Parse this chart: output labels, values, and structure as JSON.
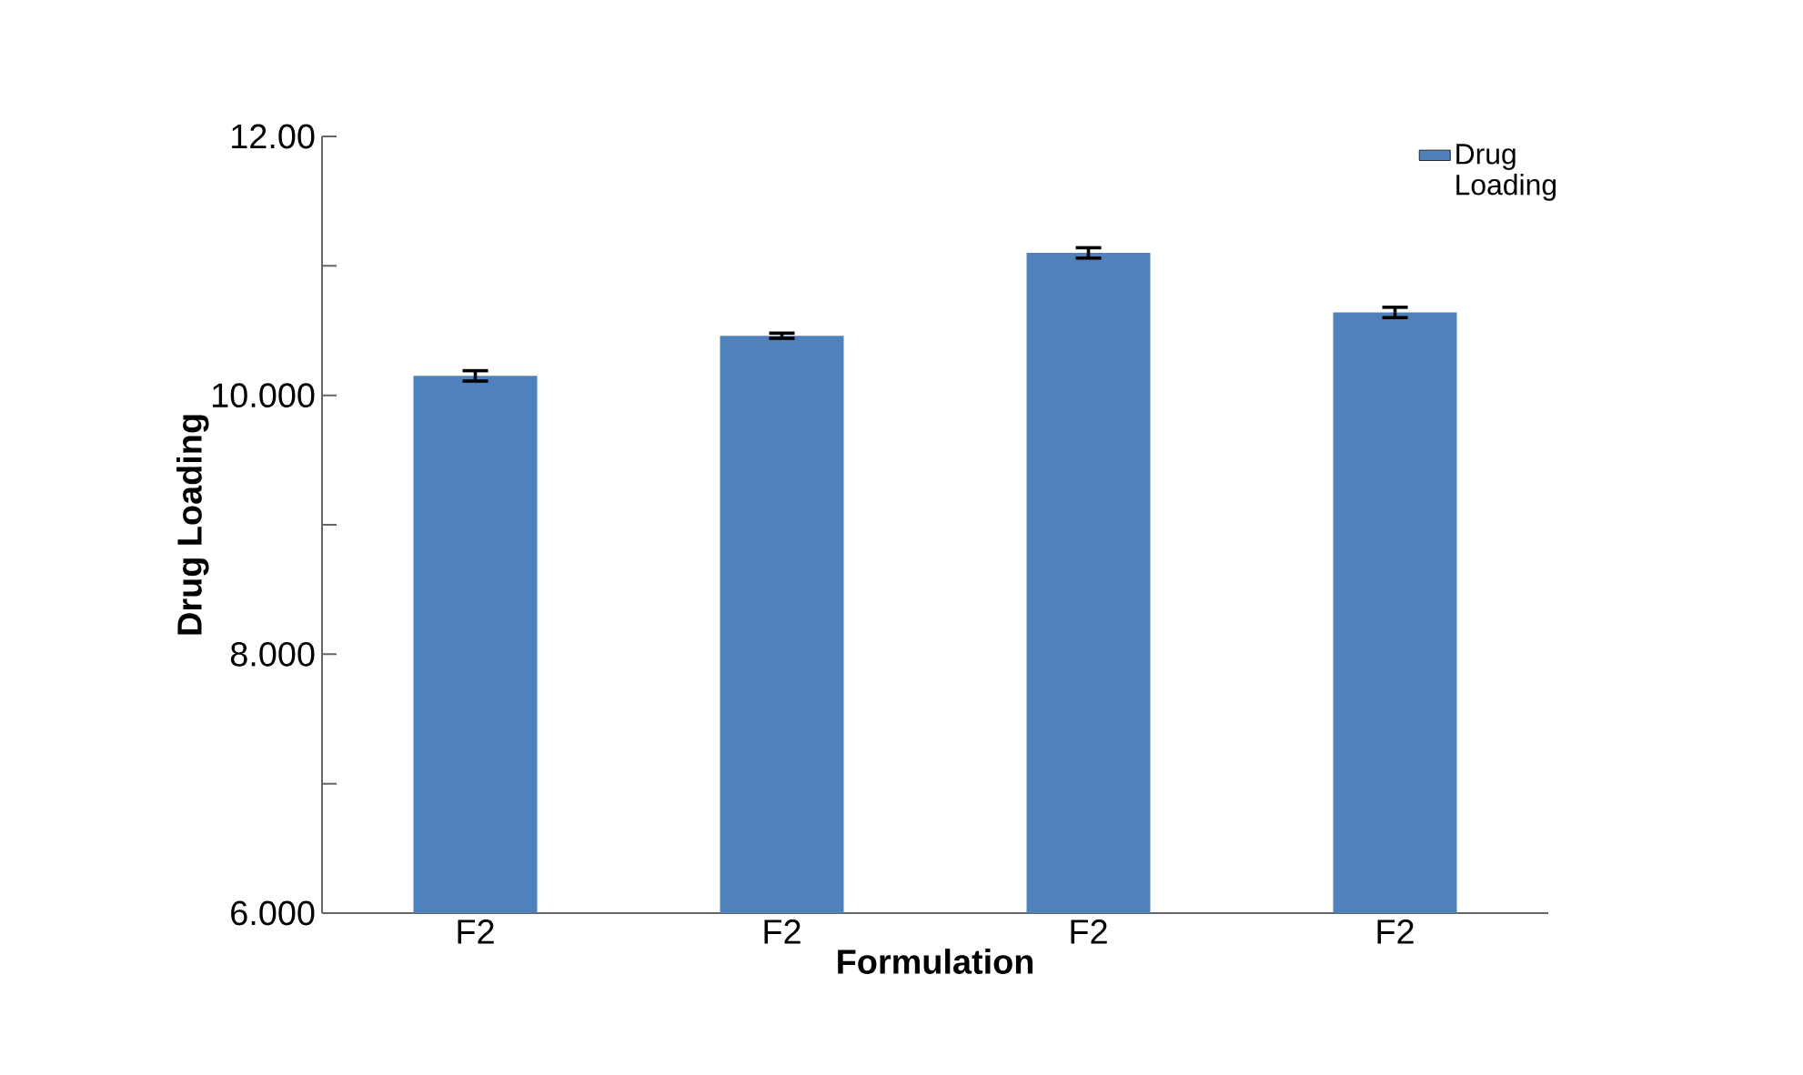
{
  "chart_data": {
    "type": "bar",
    "xlabel": "Formulation",
    "ylabel": "Drug Loading",
    "categories": [
      "F2",
      "F2",
      "F2",
      "F2"
    ],
    "series": [
      {
        "name": "Drug Loading",
        "color": "#4f81bd",
        "values": [
          10.15,
          10.46,
          11.1,
          10.64
        ],
        "errors": [
          0.04,
          0.02,
          0.04,
          0.04
        ]
      }
    ],
    "ylim": [
      6,
      12
    ],
    "yticks": [
      {
        "value": 12,
        "label": "12.00"
      },
      {
        "value": 11,
        "label": null
      },
      {
        "value": 10,
        "label": "10.000"
      },
      {
        "value": 9,
        "label": null
      },
      {
        "value": 8,
        "label": "8.000"
      },
      {
        "value": 7,
        "label": null
      },
      {
        "value": 6,
        "label": "6.000"
      }
    ],
    "legend": "top right",
    "grid": false
  }
}
